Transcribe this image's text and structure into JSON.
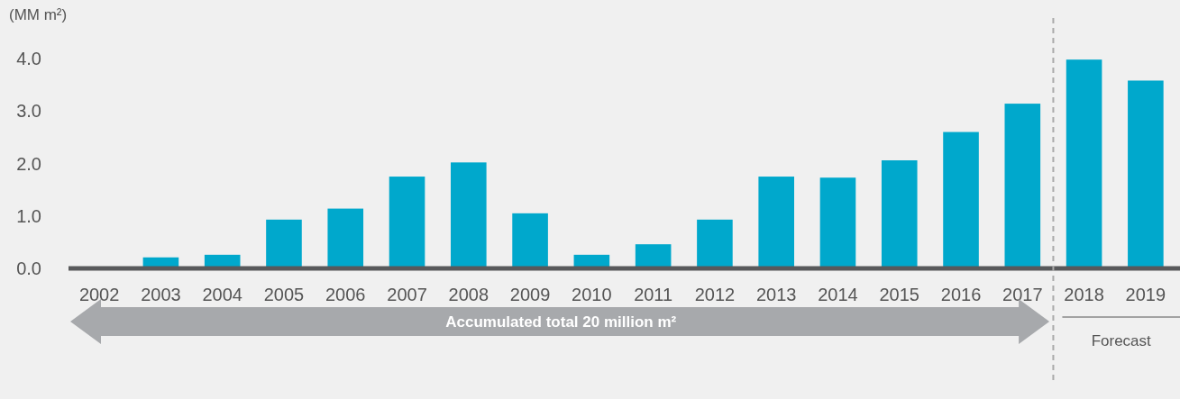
{
  "chart_data": {
    "type": "bar",
    "ylabel": "(MM m²)",
    "categories": [
      "2002",
      "2003",
      "2004",
      "2005",
      "2006",
      "2007",
      "2008",
      "2009",
      "2010",
      "2011",
      "2012",
      "2013",
      "2014",
      "2015",
      "2016",
      "2017",
      "2018",
      "2019"
    ],
    "values": [
      0,
      0.21,
      0.26,
      0.93,
      1.14,
      1.75,
      2.02,
      1.05,
      0.26,
      0.46,
      0.93,
      1.75,
      1.73,
      2.06,
      2.6,
      3.14,
      3.98,
      3.58
    ],
    "color": "#00a8cc",
    "ylim": [
      0,
      4
    ],
    "yticks": [
      {
        "value": 0,
        "label": "0.0"
      },
      {
        "value": 1,
        "label": "1.0"
      },
      {
        "value": 2,
        "label": "2.0"
      },
      {
        "value": 3,
        "label": "3.0"
      },
      {
        "value": 4,
        "label": "4.0"
      }
    ],
    "grid": false,
    "annotations": [
      "Accumulated total 20 million m²",
      "Forecast"
    ]
  }
}
